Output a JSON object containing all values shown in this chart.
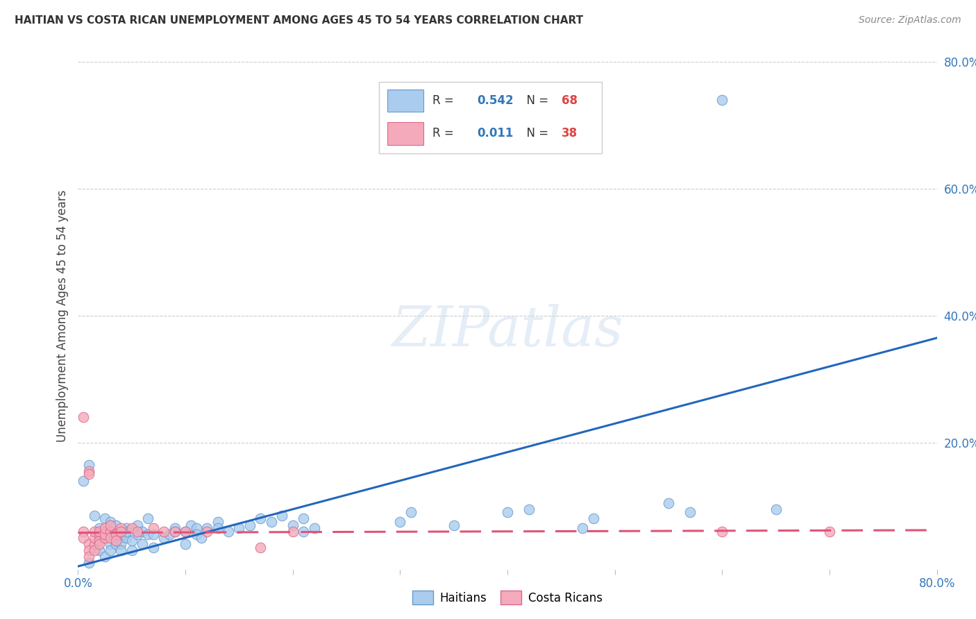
{
  "title": "HAITIAN VS COSTA RICAN UNEMPLOYMENT AMONG AGES 45 TO 54 YEARS CORRELATION CHART",
  "source": "Source: ZipAtlas.com",
  "ylabel": "Unemployment Among Ages 45 to 54 years",
  "xlim": [
    0.0,
    0.8
  ],
  "ylim": [
    0.0,
    0.8
  ],
  "haitian_color": "#aaccee",
  "costarican_color": "#f4aabb",
  "haitian_edge_color": "#6699cc",
  "costarican_edge_color": "#dd6688",
  "trendline_haitian_color": "#2266bb",
  "trendline_costarican_color": "#dd5577",
  "legend_haitian_R": "0.542",
  "legend_haitian_N": "68",
  "legend_costarican_R": "0.011",
  "legend_costarican_N": "38",
  "haitian_trendline": [
    [
      0.0,
      0.005
    ],
    [
      0.8,
      0.365
    ]
  ],
  "costarican_trendline": [
    [
      0.0,
      0.058
    ],
    [
      0.8,
      0.062
    ]
  ],
  "haitian_points": [
    [
      0.005,
      0.14
    ],
    [
      0.01,
      0.165
    ],
    [
      0.01,
      0.01
    ],
    [
      0.015,
      0.085
    ],
    [
      0.02,
      0.03
    ],
    [
      0.02,
      0.065
    ],
    [
      0.02,
      0.05
    ],
    [
      0.025,
      0.055
    ],
    [
      0.025,
      0.08
    ],
    [
      0.025,
      0.02
    ],
    [
      0.03,
      0.04
    ],
    [
      0.03,
      0.06
    ],
    [
      0.03,
      0.075
    ],
    [
      0.03,
      0.03
    ],
    [
      0.035,
      0.055
    ],
    [
      0.035,
      0.04
    ],
    [
      0.035,
      0.07
    ],
    [
      0.04,
      0.05
    ],
    [
      0.04,
      0.055
    ],
    [
      0.04,
      0.04
    ],
    [
      0.04,
      0.03
    ],
    [
      0.045,
      0.065
    ],
    [
      0.045,
      0.05
    ],
    [
      0.045,
      0.06
    ],
    [
      0.05,
      0.03
    ],
    [
      0.05,
      0.045
    ],
    [
      0.055,
      0.07
    ],
    [
      0.055,
      0.055
    ],
    [
      0.06,
      0.04
    ],
    [
      0.06,
      0.06
    ],
    [
      0.065,
      0.055
    ],
    [
      0.065,
      0.08
    ],
    [
      0.07,
      0.055
    ],
    [
      0.07,
      0.035
    ],
    [
      0.08,
      0.05
    ],
    [
      0.085,
      0.055
    ],
    [
      0.09,
      0.065
    ],
    [
      0.09,
      0.06
    ],
    [
      0.1,
      0.04
    ],
    [
      0.1,
      0.06
    ],
    [
      0.105,
      0.07
    ],
    [
      0.11,
      0.065
    ],
    [
      0.11,
      0.055
    ],
    [
      0.115,
      0.05
    ],
    [
      0.12,
      0.065
    ],
    [
      0.13,
      0.075
    ],
    [
      0.13,
      0.065
    ],
    [
      0.14,
      0.06
    ],
    [
      0.15,
      0.065
    ],
    [
      0.16,
      0.07
    ],
    [
      0.17,
      0.08
    ],
    [
      0.18,
      0.075
    ],
    [
      0.19,
      0.085
    ],
    [
      0.2,
      0.07
    ],
    [
      0.21,
      0.08
    ],
    [
      0.21,
      0.06
    ],
    [
      0.22,
      0.065
    ],
    [
      0.3,
      0.075
    ],
    [
      0.31,
      0.09
    ],
    [
      0.35,
      0.07
    ],
    [
      0.4,
      0.09
    ],
    [
      0.42,
      0.095
    ],
    [
      0.47,
      0.065
    ],
    [
      0.48,
      0.08
    ],
    [
      0.55,
      0.105
    ],
    [
      0.57,
      0.09
    ],
    [
      0.6,
      0.74
    ],
    [
      0.65,
      0.095
    ]
  ],
  "costarican_points": [
    [
      0.005,
      0.24
    ],
    [
      0.005,
      0.06
    ],
    [
      0.005,
      0.05
    ],
    [
      0.01,
      0.155
    ],
    [
      0.01,
      0.15
    ],
    [
      0.01,
      0.04
    ],
    [
      0.01,
      0.03
    ],
    [
      0.01,
      0.02
    ],
    [
      0.015,
      0.04
    ],
    [
      0.015,
      0.05
    ],
    [
      0.015,
      0.06
    ],
    [
      0.015,
      0.03
    ],
    [
      0.02,
      0.055
    ],
    [
      0.02,
      0.045
    ],
    [
      0.02,
      0.06
    ],
    [
      0.02,
      0.04
    ],
    [
      0.025,
      0.06
    ],
    [
      0.025,
      0.05
    ],
    [
      0.025,
      0.055
    ],
    [
      0.025,
      0.065
    ],
    [
      0.03,
      0.06
    ],
    [
      0.03,
      0.05
    ],
    [
      0.03,
      0.07
    ],
    [
      0.035,
      0.055
    ],
    [
      0.035,
      0.045
    ],
    [
      0.04,
      0.065
    ],
    [
      0.04,
      0.06
    ],
    [
      0.05,
      0.065
    ],
    [
      0.055,
      0.06
    ],
    [
      0.07,
      0.065
    ],
    [
      0.08,
      0.06
    ],
    [
      0.09,
      0.06
    ],
    [
      0.1,
      0.06
    ],
    [
      0.12,
      0.06
    ],
    [
      0.17,
      0.035
    ],
    [
      0.2,
      0.06
    ],
    [
      0.6,
      0.06
    ],
    [
      0.7,
      0.06
    ]
  ]
}
